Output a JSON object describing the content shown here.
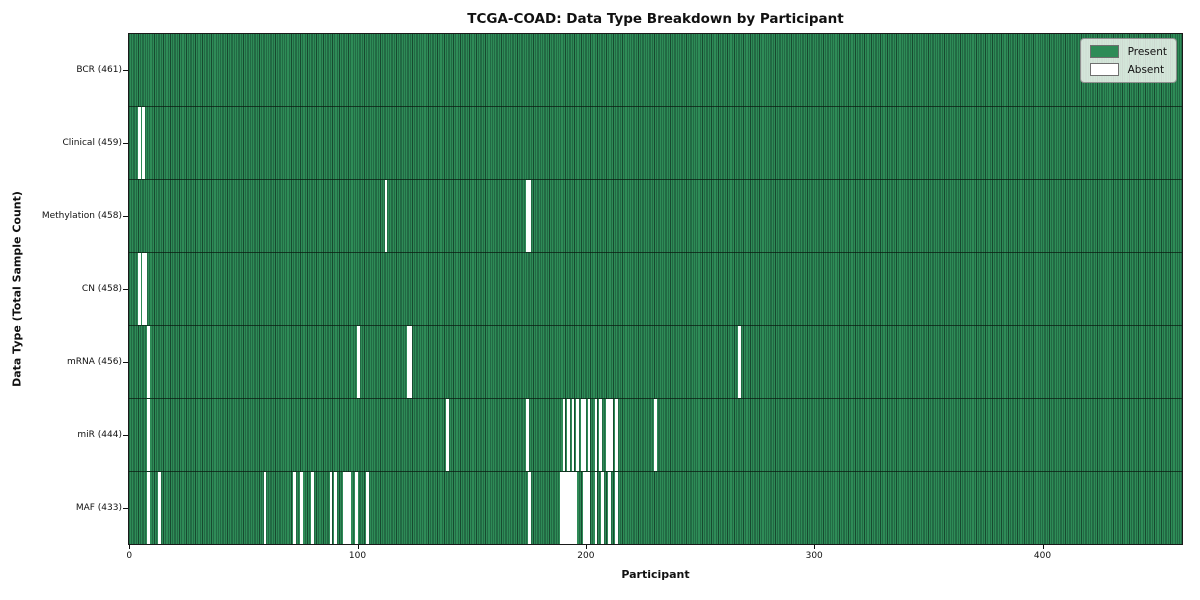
{
  "title": "TCGA-COAD: Data Type Breakdown by Participant",
  "xlabel": "Participant",
  "ylabel": "Data Type (Total Sample Count)",
  "legend": {
    "present_label": "Present",
    "absent_label": "Absent"
  },
  "colors": {
    "present": "#2e8b57",
    "absent": "#ffffff",
    "cell_edge": "#174a30",
    "row_divider": "#12291b",
    "axis": "#1a1a1a"
  },
  "chart_data": {
    "type": "heatmap",
    "title": "TCGA-COAD: Data Type Breakdown by Participant",
    "xlabel": "Participant",
    "ylabel": "Data Type (Total Sample Count)",
    "legend_entries": [
      "Present",
      "Absent"
    ],
    "legend_position": "upper right",
    "total_participants": 461,
    "x_ticks": [
      0,
      100,
      200,
      300,
      400
    ],
    "xlim": [
      0,
      461
    ],
    "rows": [
      {
        "name": "BCR",
        "label": "BCR (461)",
        "count": 461,
        "absent": []
      },
      {
        "name": "Clinical",
        "label": "Clinical (459)",
        "count": 459,
        "absent": [
          4,
          6
        ]
      },
      {
        "name": "Methylation",
        "label": "Methylation (458)",
        "count": 458,
        "absent": [
          112,
          174,
          175
        ]
      },
      {
        "name": "CN",
        "label": "CN (458)",
        "count": 458,
        "absent": [
          4,
          6,
          7
        ]
      },
      {
        "name": "mRNA",
        "label": "mRNA (456)",
        "count": 456,
        "absent": [
          8,
          100,
          122,
          123,
          267
        ]
      },
      {
        "name": "miR",
        "label": "miR (444)",
        "count": 444,
        "absent": [
          8,
          139,
          174,
          190,
          192,
          194,
          196,
          198,
          199,
          201,
          204,
          206,
          209,
          210,
          211,
          213,
          230
        ]
      },
      {
        "name": "MAF",
        "label": "MAF (433)",
        "count": 433,
        "absent": [
          8,
          13,
          59,
          72,
          75,
          80,
          88,
          90,
          94,
          95,
          96,
          99,
          104,
          175,
          189,
          190,
          191,
          192,
          193,
          194,
          195,
          199,
          200,
          201,
          204,
          207,
          210,
          213
        ]
      }
    ]
  }
}
